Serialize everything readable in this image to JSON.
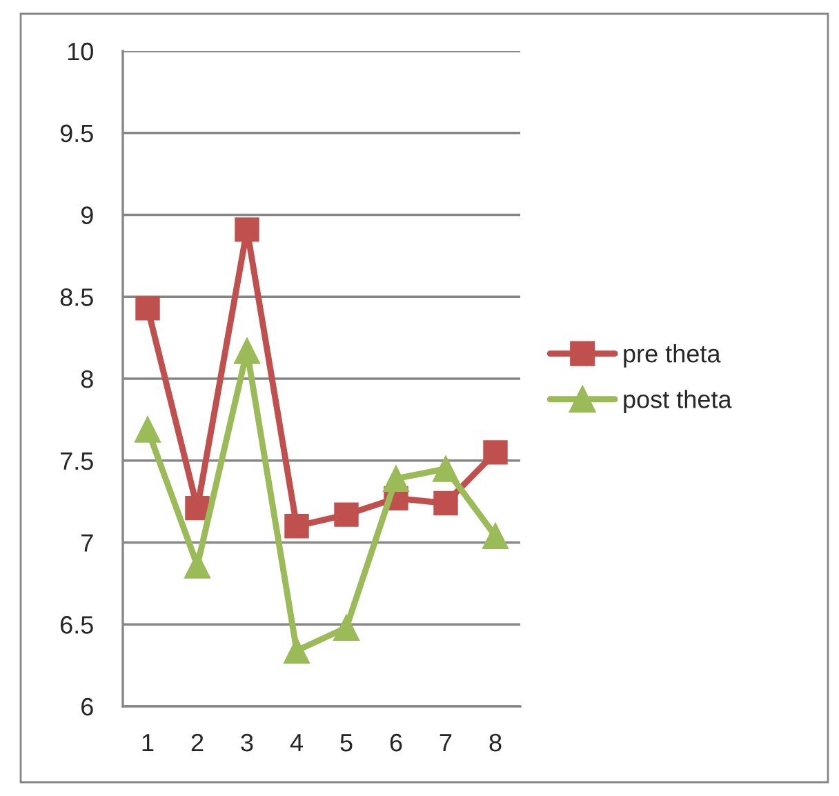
{
  "chart_data": {
    "type": "line",
    "categories": [
      "1",
      "2",
      "3",
      "4",
      "5",
      "6",
      "7",
      "8"
    ],
    "series": [
      {
        "name": "pre theta",
        "color": "#c0504d",
        "marker": "square",
        "values": [
          8.43,
          7.21,
          8.91,
          7.1,
          7.17,
          7.27,
          7.24,
          7.55
        ]
      },
      {
        "name": "post theta",
        "color": "#9bbb59",
        "marker": "triangle",
        "values": [
          7.69,
          6.86,
          8.17,
          6.34,
          6.48,
          7.39,
          7.45,
          7.04
        ]
      }
    ],
    "ylim": [
      6,
      10
    ],
    "yticks": [
      6,
      6.5,
      7,
      7.5,
      8,
      8.5,
      9,
      9.5,
      10
    ],
    "grid": "y",
    "legend": "right",
    "line_style": "solid"
  }
}
